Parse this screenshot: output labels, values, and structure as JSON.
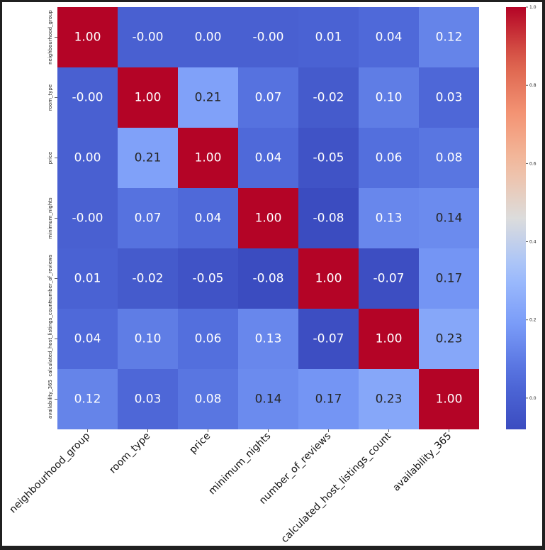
{
  "chart_data": {
    "type": "heatmap",
    "title": "",
    "variables": [
      "neighbourhood_group",
      "room_type",
      "price",
      "minimum_nights",
      "number_of_reviews",
      "calculated_host_listings_count",
      "availability_365"
    ],
    "values": [
      [
        1.0,
        -0.0,
        0.0,
        -0.0,
        0.01,
        0.04,
        0.12
      ],
      [
        -0.0,
        1.0,
        0.21,
        0.07,
        -0.02,
        0.1,
        0.03
      ],
      [
        0.0,
        0.21,
        1.0,
        0.04,
        -0.05,
        0.06,
        0.08
      ],
      [
        -0.0,
        0.07,
        0.04,
        1.0,
        -0.08,
        0.13,
        0.14
      ],
      [
        0.01,
        -0.02,
        -0.05,
        -0.08,
        1.0,
        -0.07,
        0.17
      ],
      [
        0.04,
        0.1,
        0.06,
        0.13,
        -0.07,
        1.0,
        0.23
      ],
      [
        0.12,
        0.03,
        0.08,
        0.14,
        0.17,
        0.23,
        1.0
      ]
    ],
    "annotations": [
      [
        "1.00",
        "-0.00",
        "0.00",
        "-0.00",
        "0.01",
        "0.04",
        "0.12"
      ],
      [
        "-0.00",
        "1.00",
        "0.21",
        "0.07",
        "-0.02",
        "0.10",
        "0.03"
      ],
      [
        "0.00",
        "0.21",
        "1.00",
        "0.04",
        "-0.05",
        "0.06",
        "0.08"
      ],
      [
        "-0.00",
        "0.07",
        "0.04",
        "1.00",
        "-0.08",
        "0.13",
        "0.14"
      ],
      [
        "0.01",
        "-0.02",
        "-0.05",
        "-0.08",
        "1.00",
        "-0.07",
        "0.17"
      ],
      [
        "0.04",
        "0.10",
        "0.06",
        "0.13",
        "-0.07",
        "1.00",
        "0.23"
      ],
      [
        "0.12",
        "0.03",
        "0.08",
        "0.14",
        "0.17",
        "0.23",
        "1.00"
      ]
    ],
    "colormap": "coolwarm",
    "vmin": -0.08,
    "vmax": 1.0,
    "colorbar_ticks": [
      0.0,
      0.2,
      0.4,
      0.6,
      0.8,
      1.0
    ],
    "colorbar_tick_labels": [
      "0.0",
      "0.2",
      "0.4",
      "0.6",
      "0.8",
      "1.0"
    ],
    "colors": {
      "low": "#3b4cc0",
      "mid": "#dddddd",
      "high": "#b40426",
      "text_light": "#ffffff",
      "text_dark": "#262626"
    }
  }
}
